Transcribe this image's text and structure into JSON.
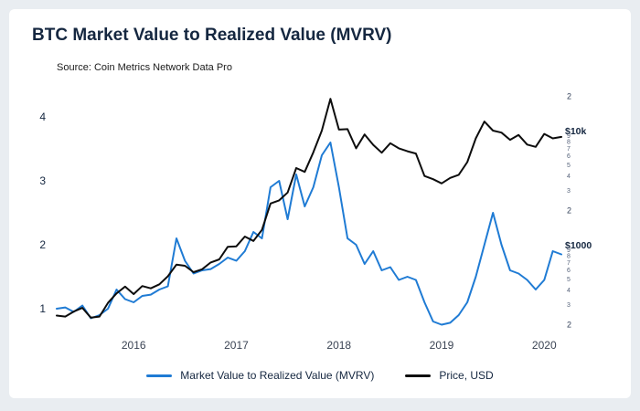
{
  "title": "BTC Market Value to Realized Value (MVRV)",
  "source": "Source: Coin Metrics Network Data Pro",
  "legend": {
    "items": [
      {
        "label": "Market Value to Realized Value (MVRV)",
        "color": "#1f7bd4"
      },
      {
        "label": "Price, USD",
        "color": "#0d0d0d"
      }
    ]
  },
  "colors": {
    "mvrv_line": "#1f7bd4",
    "price_line": "#0d0d0d",
    "title_text": "#152740",
    "card_bg": "#ffffff",
    "page_bg": "#e9edf1"
  },
  "chart_data": {
    "type": "line",
    "title": "BTC Market Value to Realized Value (MVRV)",
    "x": [
      "2015-04",
      "2015-05",
      "2015-06",
      "2015-07",
      "2015-08",
      "2015-09",
      "2015-10",
      "2015-11",
      "2015-12",
      "2016-01",
      "2016-02",
      "2016-03",
      "2016-04",
      "2016-05",
      "2016-06",
      "2016-07",
      "2016-08",
      "2016-09",
      "2016-10",
      "2016-11",
      "2016-12",
      "2017-01",
      "2017-02",
      "2017-03",
      "2017-04",
      "2017-05",
      "2017-06",
      "2017-07",
      "2017-08",
      "2017-09",
      "2017-10",
      "2017-11",
      "2017-12",
      "2018-01",
      "2018-02",
      "2018-03",
      "2018-04",
      "2018-05",
      "2018-06",
      "2018-07",
      "2018-08",
      "2018-09",
      "2018-10",
      "2018-11",
      "2018-12",
      "2019-01",
      "2019-02",
      "2019-03",
      "2019-04",
      "2019-05",
      "2019-06",
      "2019-07",
      "2019-08",
      "2019-09",
      "2019-10",
      "2019-11",
      "2019-12",
      "2020-01",
      "2020-02",
      "2020-03"
    ],
    "series": [
      {
        "name": "Market Value to Realized Value (MVRV)",
        "axis": "left",
        "color": "#1f7bd4",
        "values": [
          1.0,
          1.02,
          0.95,
          1.05,
          0.85,
          0.9,
          1.0,
          1.3,
          1.15,
          1.1,
          1.2,
          1.22,
          1.3,
          1.35,
          2.1,
          1.75,
          1.55,
          1.6,
          1.62,
          1.7,
          1.8,
          1.75,
          1.9,
          2.2,
          2.1,
          2.9,
          3.0,
          2.4,
          3.1,
          2.6,
          2.9,
          3.4,
          3.6,
          2.9,
          2.1,
          2.0,
          1.7,
          1.9,
          1.6,
          1.65,
          1.45,
          1.5,
          1.45,
          1.1,
          0.8,
          0.75,
          0.78,
          0.9,
          1.1,
          1.5,
          2.0,
          2.5,
          2.0,
          1.6,
          1.55,
          1.45,
          1.3,
          1.45,
          1.9,
          1.85
        ]
      },
      {
        "name": "Price, USD",
        "axis": "right_log",
        "color": "#0d0d0d",
        "values": [
          240,
          235,
          260,
          280,
          230,
          235,
          310,
          375,
          430,
          370,
          435,
          415,
          450,
          530,
          670,
          655,
          575,
          610,
          700,
          745,
          960,
          970,
          1180,
          1080,
          1350,
          2300,
          2450,
          2870,
          4700,
          4350,
          6450,
          10000,
          19000,
          10200,
          10300,
          7000,
          9250,
          7500,
          6400,
          7750,
          7000,
          6600,
          6300,
          4000,
          3750,
          3450,
          3850,
          4100,
          5300,
          8550,
          12000,
          10000,
          9600,
          8300,
          9150,
          7550,
          7200,
          9350,
          8550,
          8800
        ]
      }
    ],
    "axes": {
      "left": {
        "type": "linear",
        "ticks": [
          1,
          2,
          3,
          4
        ],
        "range": [
          0.6,
          4.4
        ]
      },
      "right": {
        "type": "log",
        "range": [
          200,
          20000
        ],
        "ticks": [
          {
            "value": 20000,
            "label": "2",
            "size": "mid"
          },
          {
            "value": 10000,
            "label": "$10k",
            "size": "major"
          },
          {
            "value": 9000,
            "label": "9",
            "size": "minor"
          },
          {
            "value": 8000,
            "label": "8",
            "size": "minor"
          },
          {
            "value": 7000,
            "label": "7",
            "size": "minor"
          },
          {
            "value": 6000,
            "label": "6",
            "size": "minor"
          },
          {
            "value": 5000,
            "label": "5",
            "size": "minor"
          },
          {
            "value": 4000,
            "label": "4",
            "size": "minor"
          },
          {
            "value": 3000,
            "label": "3",
            "size": "minor"
          },
          {
            "value": 2000,
            "label": "2",
            "size": "mid"
          },
          {
            "value": 1000,
            "label": "$1000",
            "size": "major"
          },
          {
            "value": 900,
            "label": "9",
            "size": "minor"
          },
          {
            "value": 800,
            "label": "8",
            "size": "minor"
          },
          {
            "value": 700,
            "label": "7",
            "size": "minor"
          },
          {
            "value": 600,
            "label": "6",
            "size": "minor"
          },
          {
            "value": 500,
            "label": "5",
            "size": "minor"
          },
          {
            "value": 400,
            "label": "4",
            "size": "minor"
          },
          {
            "value": 300,
            "label": "3",
            "size": "minor"
          },
          {
            "value": 200,
            "label": "2",
            "size": "mid"
          }
        ]
      },
      "x": {
        "ticks": [
          {
            "label": "2016",
            "index": 9
          },
          {
            "label": "2017",
            "index": 21
          },
          {
            "label": "2018",
            "index": 33
          },
          {
            "label": "2019",
            "index": 45
          },
          {
            "label": "2020",
            "index": 57
          }
        ]
      }
    },
    "grid": false,
    "legend_position": "bottom"
  }
}
